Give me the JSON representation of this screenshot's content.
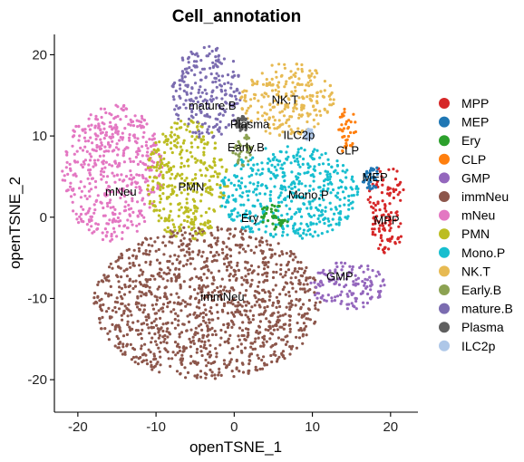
{
  "chart_data": {
    "type": "scatter",
    "title": "Cell_annotation",
    "xlabel": "openTSNE_1",
    "ylabel": "openTSNE_2",
    "xlim": [
      -23,
      23.5
    ],
    "ylim": [
      -24,
      22.5
    ],
    "xticks": [
      -20,
      -10,
      0,
      10,
      20
    ],
    "yticks": [
      -20,
      -10,
      0,
      10,
      20
    ],
    "grid": false,
    "legend_position": "right",
    "series": [
      {
        "name": "MPP",
        "color": "#d62728"
      },
      {
        "name": "MEP",
        "color": "#1f77b4"
      },
      {
        "name": "Ery",
        "color": "#2ca02c"
      },
      {
        "name": "CLP",
        "color": "#ff7f0e"
      },
      {
        "name": "GMP",
        "color": "#9467bd"
      },
      {
        "name": "immNeu",
        "color": "#8c564b"
      },
      {
        "name": "mNeu",
        "color": "#e377c2"
      },
      {
        "name": "PMN",
        "color": "#bcbd22"
      },
      {
        "name": "Mono.P",
        "color": "#17becf"
      },
      {
        "name": "NK.T",
        "color": "#e7ba52"
      },
      {
        "name": "Early.B",
        "color": "#8ca252"
      },
      {
        "name": "mature.B",
        "color": "#7b6cb0"
      },
      {
        "name": "Plasma",
        "color": "#5f5f5f"
      },
      {
        "name": "ILC2p",
        "color": "#aec7e8"
      }
    ],
    "clusters": [
      {
        "name": "immNeu",
        "center": [
          -3.5,
          -10.5
        ],
        "rx": 14.5,
        "ry": 9.5,
        "label": "immNeu",
        "label_pos": [
          -1.5,
          -9.7
        ]
      },
      {
        "name": "mNeu",
        "center": [
          -15.5,
          5.5
        ],
        "rx": 6.5,
        "ry": 8.5,
        "label": "mNeu",
        "label_pos": [
          -14.5,
          3.2
        ]
      },
      {
        "name": "PMN",
        "center": [
          -6,
          4.5
        ],
        "rx": 5.2,
        "ry": 7.5,
        "label": "PMN",
        "label_pos": [
          -5.5,
          3.8
        ]
      },
      {
        "name": "mature.B",
        "center": [
          -3.5,
          15.5
        ],
        "rx": 4.5,
        "ry": 5.8,
        "label": "mature.B",
        "label_pos": [
          -2.8,
          13.8
        ]
      },
      {
        "name": "NK.T",
        "center": [
          6.8,
          14.5
        ],
        "rx": 6,
        "ry": 4.5,
        "label": "NK.T",
        "label_pos": [
          6.5,
          14.5
        ]
      },
      {
        "name": "Mono.P",
        "center": [
          7,
          3
        ],
        "rx": 9,
        "ry": 5.8,
        "label": "Mono.P",
        "label_pos": [
          9.5,
          2.8
        ]
      },
      {
        "name": "MPP",
        "center": [
          19.5,
          1
        ],
        "rx": 2.5,
        "ry": 5.5,
        "label": "MPP",
        "label_pos": [
          19.5,
          -0.3
        ]
      },
      {
        "name": "MEP",
        "center": [
          17.5,
          5
        ],
        "rx": 1.2,
        "ry": 1.6,
        "label": "MEP",
        "label_pos": [
          18,
          5
        ]
      },
      {
        "name": "CLP",
        "center": [
          14.5,
          10.5
        ],
        "rx": 1.2,
        "ry": 3,
        "label": "CLP",
        "label_pos": [
          14.5,
          8.3
        ]
      },
      {
        "name": "GMP",
        "center": [
          14.5,
          -8.5
        ],
        "rx": 5,
        "ry": 3,
        "label": "GMP",
        "label_pos": [
          13.5,
          -7.2
        ]
      },
      {
        "name": "Ery",
        "center": [
          5,
          0
        ],
        "rx": 2,
        "ry": 1.5,
        "label": "Ery",
        "label_pos": [
          2,
          0
        ]
      },
      {
        "name": "Early.B",
        "center": [
          1,
          8.5
        ],
        "rx": 1.2,
        "ry": 2.2,
        "label": "Early.B",
        "label_pos": [
          1.5,
          8.7
        ]
      },
      {
        "name": "Plasma",
        "center": [
          1,
          11.5
        ],
        "rx": 0.8,
        "ry": 1,
        "label": "Plasma",
        "label_pos": [
          2,
          11.5
        ]
      },
      {
        "name": "ILC2p",
        "center": [
          9.5,
          10.2
        ],
        "rx": 0.7,
        "ry": 0.7,
        "label": "ILC2p",
        "label_pos": [
          8.3,
          10.2
        ]
      }
    ]
  }
}
